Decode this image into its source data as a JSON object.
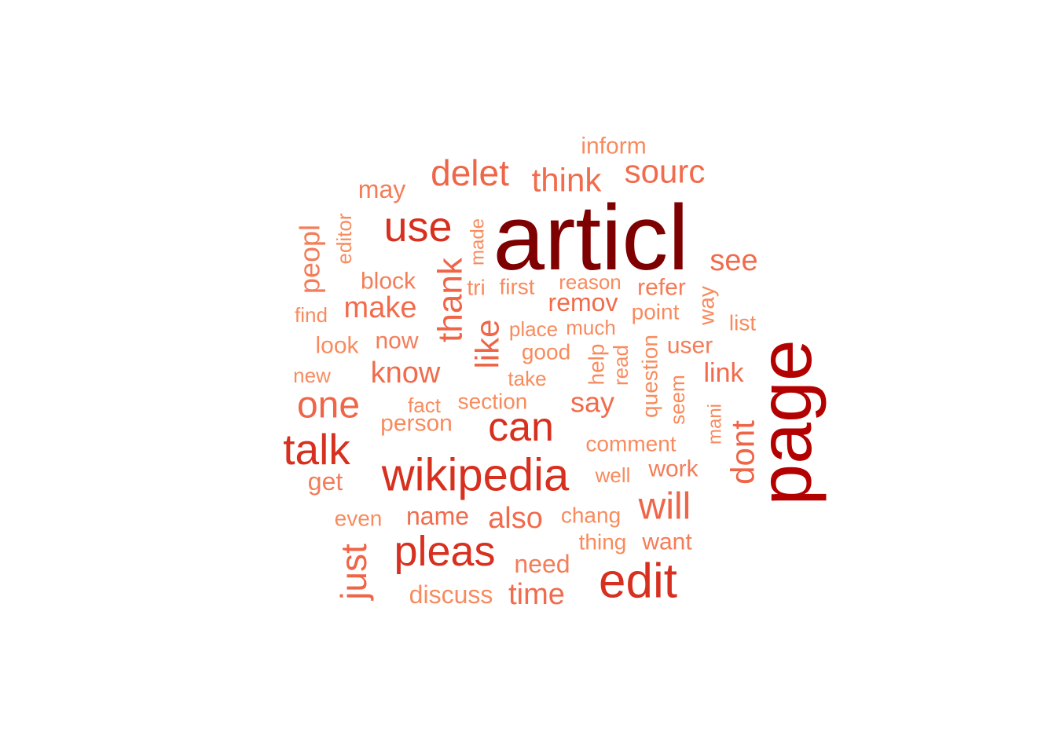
{
  "chart_data": {
    "type": "wordcloud",
    "title": "",
    "colors": {
      "c1": "#7f0000",
      "c2": "#b30000",
      "c3": "#d7301f",
      "c4": "#e34a33",
      "c5": "#ef6548",
      "c6": "#f16b4c",
      "c7": "#f47c58",
      "c8": "#f88b5e"
    },
    "words": [
      {
        "text": "articl",
        "level": 1,
        "orientation": "horizontal"
      },
      {
        "text": "page",
        "level": 2,
        "orientation": "vertical"
      },
      {
        "text": "wikipedia",
        "level": 3,
        "orientation": "horizontal"
      },
      {
        "text": "edit",
        "level": 3,
        "orientation": "horizontal"
      },
      {
        "text": "talk",
        "level": 3,
        "orientation": "horizontal"
      },
      {
        "text": "can",
        "level": 3,
        "orientation": "horizontal"
      },
      {
        "text": "use",
        "level": 3,
        "orientation": "horizontal"
      },
      {
        "text": "pleas",
        "level": 3,
        "orientation": "horizontal"
      },
      {
        "text": "one",
        "level": 5,
        "orientation": "horizontal"
      },
      {
        "text": "will",
        "level": 5,
        "orientation": "horizontal"
      },
      {
        "text": "delet",
        "level": 5,
        "orientation": "horizontal"
      },
      {
        "text": "just",
        "level": 5,
        "orientation": "vertical"
      },
      {
        "text": "thank",
        "level": 5,
        "orientation": "vertical"
      },
      {
        "text": "like",
        "level": 5,
        "orientation": "vertical"
      },
      {
        "text": "dont",
        "level": 5,
        "orientation": "vertical"
      },
      {
        "text": "sourc",
        "level": 6,
        "orientation": "horizontal"
      },
      {
        "text": "think",
        "level": 6,
        "orientation": "horizontal"
      },
      {
        "text": "see",
        "level": 6,
        "orientation": "horizontal"
      },
      {
        "text": "make",
        "level": 6,
        "orientation": "horizontal"
      },
      {
        "text": "know",
        "level": 6,
        "orientation": "horizontal"
      },
      {
        "text": "also",
        "level": 6,
        "orientation": "horizontal"
      },
      {
        "text": "name",
        "level": 6,
        "orientation": "horizontal"
      },
      {
        "text": "remov",
        "level": 6,
        "orientation": "horizontal"
      },
      {
        "text": "time",
        "level": 6,
        "orientation": "horizontal"
      },
      {
        "text": "say",
        "level": 6,
        "orientation": "horizontal"
      },
      {
        "text": "link",
        "level": 6,
        "orientation": "horizontal"
      },
      {
        "text": "peopl",
        "level": 7,
        "orientation": "vertical"
      },
      {
        "text": "may",
        "level": 7,
        "orientation": "horizontal"
      },
      {
        "text": "need",
        "level": 7,
        "orientation": "horizontal"
      },
      {
        "text": "want",
        "level": 7,
        "orientation": "horizontal"
      },
      {
        "text": "refer",
        "level": 7,
        "orientation": "horizontal"
      },
      {
        "text": "block",
        "level": 7,
        "orientation": "horizontal"
      },
      {
        "text": "get",
        "level": 7,
        "orientation": "horizontal"
      },
      {
        "text": "now",
        "level": 7,
        "orientation": "horizontal"
      },
      {
        "text": "work",
        "level": 7,
        "orientation": "horizontal"
      },
      {
        "text": "user",
        "level": 7,
        "orientation": "horizontal"
      },
      {
        "text": "inform",
        "level": 8,
        "orientation": "horizontal"
      },
      {
        "text": "look",
        "level": 8,
        "orientation": "horizontal"
      },
      {
        "text": "person",
        "level": 8,
        "orientation": "horizontal"
      },
      {
        "text": "discuss",
        "level": 8,
        "orientation": "horizontal"
      },
      {
        "text": "even",
        "level": 8,
        "orientation": "horizontal"
      },
      {
        "text": "comment",
        "level": 8,
        "orientation": "horizontal"
      },
      {
        "text": "chang",
        "level": 8,
        "orientation": "horizontal"
      },
      {
        "text": "thing",
        "level": 8,
        "orientation": "horizontal"
      },
      {
        "text": "good",
        "level": 8,
        "orientation": "horizontal"
      },
      {
        "text": "section",
        "level": 8,
        "orientation": "horizontal"
      },
      {
        "text": "first",
        "level": 8,
        "orientation": "horizontal"
      },
      {
        "text": "list",
        "level": 8,
        "orientation": "horizontal"
      },
      {
        "text": "point",
        "level": 8,
        "orientation": "horizontal"
      },
      {
        "text": "tri",
        "level": 8,
        "orientation": "horizontal"
      },
      {
        "text": "well",
        "level": 8,
        "orientation": "horizontal"
      },
      {
        "text": "fact",
        "level": 8,
        "orientation": "horizontal"
      },
      {
        "text": "new",
        "level": 8,
        "orientation": "horizontal"
      },
      {
        "text": "find",
        "level": 8,
        "orientation": "horizontal"
      },
      {
        "text": "take",
        "level": 8,
        "orientation": "horizontal"
      },
      {
        "text": "place",
        "level": 8,
        "orientation": "horizontal"
      },
      {
        "text": "much",
        "level": 8,
        "orientation": "horizontal"
      },
      {
        "text": "reason",
        "level": 8,
        "orientation": "horizontal"
      },
      {
        "text": "editor",
        "level": 8,
        "orientation": "vertical"
      },
      {
        "text": "made",
        "level": 8,
        "orientation": "vertical"
      },
      {
        "text": "help",
        "level": 8,
        "orientation": "vertical"
      },
      {
        "text": "read",
        "level": 8,
        "orientation": "vertical"
      },
      {
        "text": "question",
        "level": 8,
        "orientation": "vertical"
      },
      {
        "text": "seem",
        "level": 8,
        "orientation": "vertical"
      },
      {
        "text": "mani",
        "level": 8,
        "orientation": "vertical"
      },
      {
        "text": "way",
        "level": 8,
        "orientation": "vertical"
      }
    ]
  }
}
